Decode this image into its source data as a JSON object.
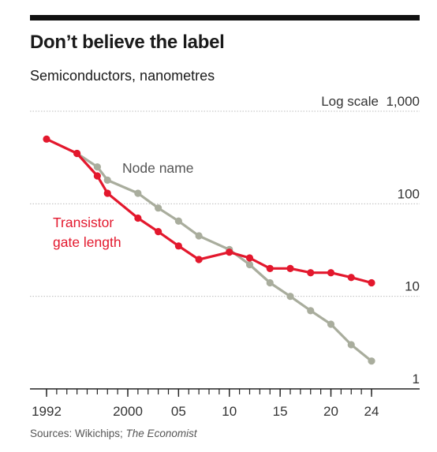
{
  "title": "Don’t believe the label",
  "subtitle": "Semiconductors, nanometres",
  "source": {
    "prefix": "Sources: Wikichips; ",
    "italic": "The Economist"
  },
  "colors": {
    "gate": "#e3182d",
    "node": "#a9ad9d",
    "rule": "#111111",
    "grid": "#bdbdbd"
  },
  "chart_data": {
    "type": "line",
    "log_scale_note": "Log scale",
    "y_scale": "log",
    "ylim": [
      1,
      1000
    ],
    "xlim": [
      1992,
      2025
    ],
    "grid": true,
    "y_ticks": [
      {
        "value": 1000,
        "label": "1,000"
      },
      {
        "value": 100,
        "label": "100"
      },
      {
        "value": 10,
        "label": "10"
      },
      {
        "value": 1,
        "label": "1"
      }
    ],
    "x_tick_labels": [
      {
        "value": 1992,
        "label": "1992"
      },
      {
        "value": 2000,
        "label": "2000"
      },
      {
        "value": 2005,
        "label": "05"
      },
      {
        "value": 2010,
        "label": "10"
      },
      {
        "value": 2015,
        "label": "15"
      },
      {
        "value": 2020,
        "label": "20"
      },
      {
        "value": 2024,
        "label": "24"
      }
    ],
    "x_minor_ticks": [
      1992,
      1993,
      1994,
      1995,
      1996,
      1997,
      1998,
      1999,
      2000,
      2001,
      2002,
      2003,
      2004,
      2005,
      2006,
      2007,
      2008,
      2009,
      2010,
      2011,
      2012,
      2013,
      2014,
      2015,
      2016,
      2017,
      2018,
      2019,
      2020,
      2021,
      2022,
      2023,
      2024
    ],
    "series": [
      {
        "key": "node",
        "name": "Node name",
        "x": [
          1995,
          1997,
          1998,
          2001,
          2003,
          2005,
          2007,
          2010,
          2012,
          2014,
          2016,
          2018,
          2020,
          2022,
          2024
        ],
        "y": [
          350,
          250,
          180,
          130,
          90,
          65,
          45,
          32,
          22,
          14,
          10,
          7,
          5,
          3,
          2
        ]
      },
      {
        "key": "gate",
        "name": "Transistor gate length",
        "name_lines": [
          "Transistor",
          "gate length"
        ],
        "x": [
          1992,
          1995,
          1997,
          1998,
          2001,
          2003,
          2005,
          2007,
          2010,
          2012,
          2014,
          2016,
          2018,
          2020,
          2022,
          2024
        ],
        "y": [
          500,
          350,
          200,
          130,
          70,
          50,
          35,
          25,
          30,
          26,
          20,
          20,
          18,
          18,
          16,
          14
        ]
      }
    ]
  }
}
